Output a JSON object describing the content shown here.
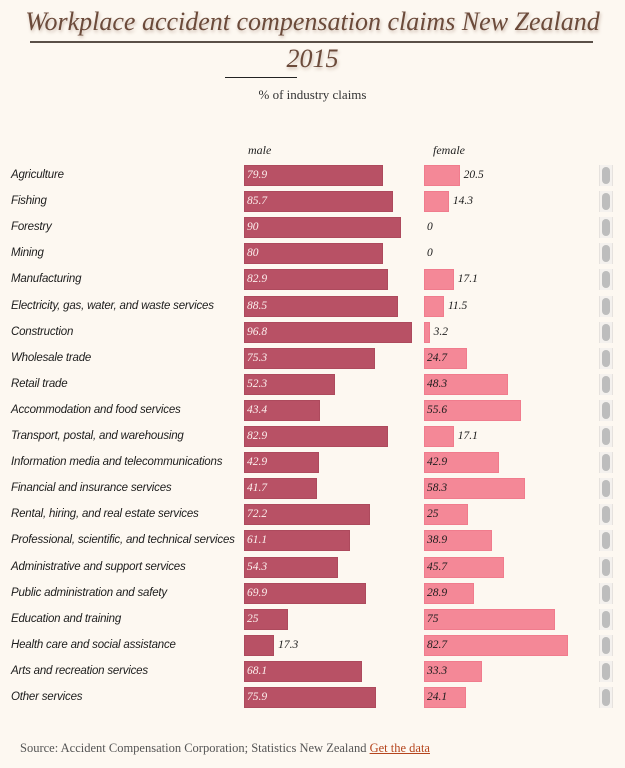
{
  "header": {
    "title": "Workplace accident compensation claims New Zealand",
    "year": "2015",
    "subtitle": "% of industry claims"
  },
  "footer": {
    "source": "Source: Accident Compensation Corporation; Statistics New Zealand",
    "link_label": "Get the data"
  },
  "colors": {
    "male": "#b85165",
    "female": "#f48897",
    "background": "#fdf8f1",
    "link": "#b5451d"
  },
  "chart_data": {
    "type": "bar",
    "orientation": "horizontal",
    "title": "Workplace accident compensation claims New Zealand 2015",
    "subtitle": "% of industry claims",
    "xlabel": "",
    "ylabel": "",
    "xlim": [
      0,
      100
    ],
    "grid": false,
    "legend": "none",
    "categories": [
      "Agriculture",
      "Fishing",
      "Forestry",
      "Mining",
      "Manufacturing",
      "Electricity, gas, water, and waste services",
      "Construction",
      "Wholesale trade",
      "Retail trade",
      "Accommodation and food services",
      "Transport, postal, and warehousing",
      "Information media and telecommunications",
      "Financial and insurance services",
      "Rental, hiring, and real estate services",
      "Professional, scientific, and technical services",
      "Administrative and support services",
      "Public administration and safety",
      "Education and training",
      "Health care and social assistance",
      "Arts and recreation services",
      "Other services"
    ],
    "series": [
      {
        "name": "male",
        "values": [
          79.9,
          85.7,
          90,
          80,
          82.9,
          88.5,
          96.8,
          75.3,
          52.3,
          43.4,
          82.9,
          42.9,
          41.7,
          72.2,
          61.1,
          54.3,
          69.9,
          25,
          17.3,
          68.1,
          75.9
        ]
      },
      {
        "name": "female",
        "values": [
          20.5,
          14.3,
          0,
          0,
          17.1,
          11.5,
          3.2,
          24.7,
          48.3,
          55.6,
          17.1,
          42.9,
          58.3,
          25,
          38.9,
          45.7,
          28.9,
          75,
          82.7,
          33.3,
          24.1
        ]
      }
    ]
  }
}
